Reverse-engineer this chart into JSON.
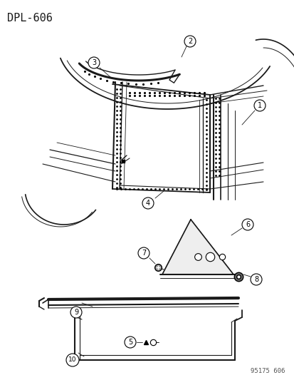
{
  "title": "DPL-606",
  "footer": "95175 606",
  "bg_color": "#ffffff",
  "line_color": "#1a1a1a",
  "title_fontsize": 11,
  "footer_fontsize": 6.5,
  "label_fontsize": 7.5,
  "fig_w": 4.14,
  "fig_h": 5.33,
  "dpi": 100
}
